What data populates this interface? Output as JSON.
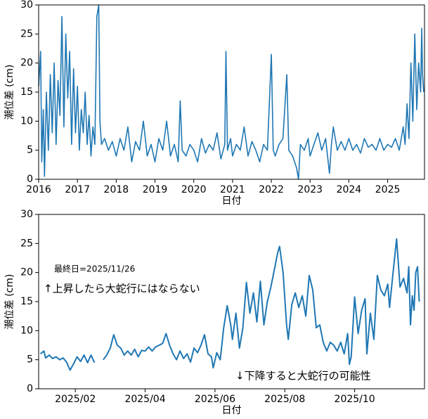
{
  "chart_data": [
    {
      "type": "line",
      "xlabel": "日付",
      "ylabel": "潮位差 (cm)",
      "x": [
        2016.0,
        2016.05,
        2016.08,
        2016.12,
        2016.15,
        2016.2,
        2016.25,
        2016.3,
        2016.35,
        2016.4,
        2016.45,
        2016.5,
        2016.55,
        2016.6,
        2016.65,
        2016.7,
        2016.75,
        2016.8,
        2016.85,
        2016.9,
        2016.95,
        2017.0,
        2017.05,
        2017.1,
        2017.15,
        2017.2,
        2017.25,
        2017.3,
        2017.35,
        2017.4,
        2017.45,
        2017.5,
        2017.55,
        2017.58,
        2017.62,
        2017.7,
        2017.8,
        2017.9,
        2018.0,
        2018.1,
        2018.2,
        2018.3,
        2018.4,
        2018.5,
        2018.6,
        2018.7,
        2018.8,
        2018.9,
        2019.0,
        2019.1,
        2019.2,
        2019.3,
        2019.4,
        2019.5,
        2019.6,
        2019.65,
        2019.7,
        2019.8,
        2019.9,
        2020.0,
        2020.1,
        2020.2,
        2020.3,
        2020.4,
        2020.5,
        2020.6,
        2020.7,
        2020.8,
        2020.83,
        2020.87,
        2020.95,
        2021.0,
        2021.1,
        2021.2,
        2021.3,
        2021.4,
        2021.5,
        2021.6,
        2021.7,
        2021.8,
        2021.9,
        2022.0,
        2022.05,
        2022.1,
        2022.2,
        2022.3,
        2022.4,
        2022.45,
        2022.55,
        2022.65,
        2022.7,
        2022.75,
        2022.85,
        2022.95,
        2023.0,
        2023.1,
        2023.2,
        2023.3,
        2023.4,
        2023.5,
        2023.55,
        2023.6,
        2023.7,
        2023.8,
        2023.9,
        2024.0,
        2024.1,
        2024.2,
        2024.3,
        2024.4,
        2024.5,
        2024.6,
        2024.7,
        2024.8,
        2024.9,
        2025.0,
        2025.1,
        2025.2,
        2025.3,
        2025.4,
        2025.45,
        2025.5,
        2025.55,
        2025.6,
        2025.65,
        2025.7,
        2025.75,
        2025.8,
        2025.85,
        2025.88,
        2025.9,
        2025.93
      ],
      "series": [
        {
          "color": "#1f77b4",
          "values": [
            16,
            22,
            3,
            12,
            0.5,
            15,
            5,
            18,
            8,
            20,
            6,
            17,
            11,
            28,
            9,
            25,
            14,
            22,
            6,
            19,
            8,
            16,
            5,
            12,
            8,
            15,
            6,
            11,
            4,
            9,
            6,
            28,
            30,
            10,
            6,
            7,
            5,
            6.5,
            4,
            7,
            5,
            9,
            3,
            6.5,
            5,
            10,
            4,
            6,
            3,
            7,
            5,
            10,
            4,
            6,
            3,
            13.5,
            5,
            4,
            6,
            5,
            3,
            7,
            4.5,
            6,
            5,
            8,
            3.5,
            6,
            22,
            5,
            7,
            4,
            6,
            5,
            9,
            4,
            6.5,
            5,
            3,
            6,
            5,
            21.5,
            5,
            4,
            6,
            7,
            18,
            5,
            4,
            2,
            0,
            6,
            5,
            7,
            4,
            6,
            8,
            5,
            7,
            1,
            6,
            9,
            5,
            6.5,
            5,
            7,
            5,
            6,
            4.5,
            7,
            5.5,
            6,
            5,
            7,
            5,
            6,
            5.5,
            7,
            5,
            9,
            6,
            13,
            7,
            20,
            10,
            25,
            12,
            20,
            15,
            26,
            18,
            15
          ]
        }
      ],
      "xlim": [
        2016,
        2025.95
      ],
      "ylim": [
        0,
        30
      ],
      "xticks": [
        2016,
        2017,
        2018,
        2019,
        2020,
        2021,
        2022,
        2023,
        2024,
        2025
      ],
      "yticks": [
        0,
        5,
        10,
        15,
        20,
        25,
        30
      ]
    },
    {
      "type": "line",
      "xlabel": "日付",
      "ylabel": "潮位差 (cm)",
      "annotations": [
        "最終日=2025/11/26",
        "↑上昇したら大蛇行にはならない",
        "↓下降すると大蛇行の可能性"
      ],
      "x": [
        1.0,
        1.1,
        1.15,
        1.25,
        1.35,
        1.45,
        1.55,
        1.65,
        1.75,
        1.85,
        1.95,
        2.05,
        2.15,
        2.25,
        2.35,
        2.45,
        2.55,
        2.7,
        2.8,
        2.9,
        3.0,
        3.1,
        3.2,
        3.3,
        3.4,
        3.5,
        3.6,
        3.7,
        3.8,
        3.9,
        4.0,
        4.1,
        4.2,
        4.3,
        4.4,
        4.5,
        4.6,
        4.7,
        4.8,
        4.9,
        5.0,
        5.1,
        5.2,
        5.3,
        5.4,
        5.5,
        5.6,
        5.7,
        5.8,
        5.9,
        5.95,
        6.05,
        6.15,
        6.25,
        6.35,
        6.45,
        6.5,
        6.6,
        6.7,
        6.8,
        6.9,
        7.0,
        7.1,
        7.2,
        7.3,
        7.4,
        7.5,
        7.6,
        7.7,
        7.8,
        7.85,
        7.95,
        8.05,
        8.1,
        8.2,
        8.3,
        8.4,
        8.5,
        8.6,
        8.7,
        8.8,
        8.9,
        9.0,
        9.1,
        9.2,
        9.3,
        9.4,
        9.5,
        9.6,
        9.7,
        9.8,
        9.85,
        9.9,
        10.0,
        10.1,
        10.2,
        10.3,
        10.35,
        10.45,
        10.55,
        10.65,
        10.75,
        10.85,
        10.95,
        11.0,
        11.1,
        11.2,
        11.3,
        11.4,
        11.5,
        11.55,
        11.6,
        11.65,
        11.7,
        11.75,
        11.8,
        11.85
      ],
      "series": [
        {
          "color": "#1f77b4",
          "values": [
            6.0,
            6.5,
            5.3,
            5.8,
            5.2,
            5.5,
            5.0,
            5.3,
            4.6,
            3.2,
            4.3,
            5.5,
            4.7,
            5.8,
            4.5,
            5.8,
            4.5,
            null,
            5.0,
            5.8,
            7.0,
            9.3,
            7.5,
            7.0,
            5.8,
            6.5,
            5.8,
            6.8,
            5.5,
            6.6,
            6.5,
            7.2,
            6.5,
            7.2,
            7.5,
            7.8,
            9.5,
            7.5,
            6.0,
            5.0,
            6.5,
            5.2,
            6.0,
            4.6,
            7.0,
            6.2,
            7.5,
            9.3,
            6.0,
            5.5,
            3.6,
            6.2,
            5.0,
            10.5,
            14.3,
            11.0,
            8.5,
            13.0,
            7.0,
            10.5,
            18.3,
            13.0,
            16.5,
            11.5,
            18.5,
            11.0,
            15.0,
            17.5,
            20.5,
            23.5,
            24.5,
            20.0,
            11.0,
            8.5,
            14.5,
            16.5,
            14.0,
            16.0,
            12.5,
            19.5,
            17.0,
            10.5,
            11.0,
            8.0,
            6.5,
            8.0,
            7.5,
            6.5,
            8.0,
            6.0,
            9.5,
            4.2,
            5.5,
            15.8,
            9.5,
            13.5,
            15.5,
            6.0,
            13.0,
            8.5,
            19.5,
            17.0,
            16.0,
            18.0,
            14.0,
            20.0,
            25.8,
            17.5,
            19.0,
            16.5,
            21.0,
            11.0,
            16.0,
            13.5,
            20.0,
            21.0,
            15.0
          ]
        }
      ],
      "xlim": [
        0.95,
        12.0
      ],
      "ylim": [
        0,
        30
      ],
      "xticks": [
        {
          "value": 2,
          "label": "2025/02"
        },
        {
          "value": 4,
          "label": "2025/04"
        },
        {
          "value": 6,
          "label": "2025/06"
        },
        {
          "value": 8,
          "label": "2025/08"
        },
        {
          "value": 10,
          "label": "2025/10"
        }
      ],
      "yticks": [
        0,
        5,
        10,
        15,
        20,
        25,
        30
      ]
    }
  ]
}
